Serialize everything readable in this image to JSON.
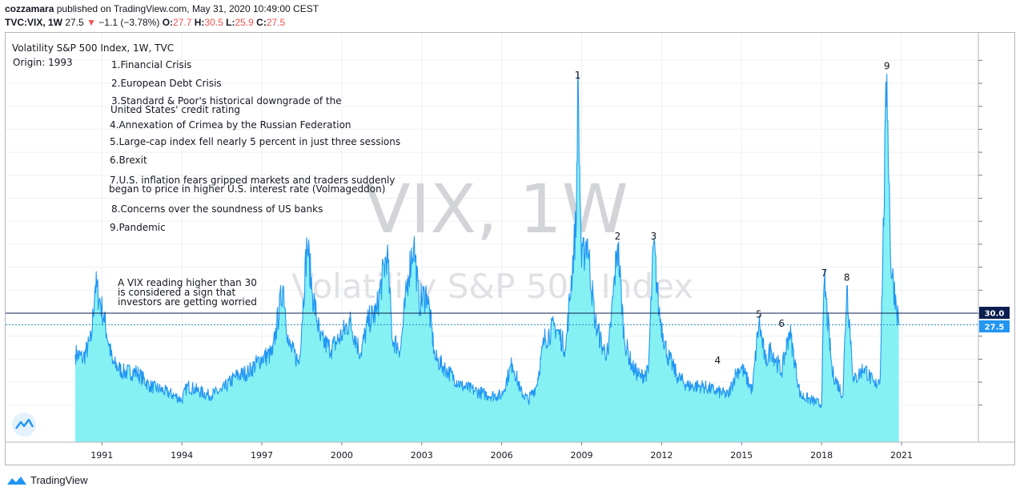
{
  "header": {
    "author": "cozzamara",
    "published_text": "published on TradingView.com, May 31, 2020 10:49:00 CEST",
    "symbol": "TVC:VIX, 1W",
    "last": "27.5",
    "change": "−1.1 (−3.78%)",
    "o_label": "O:",
    "o": "27.7",
    "h_label": "H:",
    "h": "30.5",
    "l_label": "L:",
    "l": "25.9",
    "c_label": "C:",
    "c": "27.5"
  },
  "legend": {
    "title": "Volatility S&P 500 Index, 1W, TVC",
    "origin": "Origin: 1993"
  },
  "watermark": {
    "big": "VIX, 1W",
    "small": "Volatility S&P 500 Index"
  },
  "events": [
    {
      "lines": [
        "1.Financial Crisis"
      ]
    },
    {
      "lines": [
        "2.European Debt Crisis"
      ]
    },
    {
      "lines": [
        "3.Standard & Poor's historical downgrade of the",
        "United States' credit rating"
      ]
    },
    {
      "lines": [
        "4.Annexation of Crimea by the Russian Federation"
      ]
    },
    {
      "lines": [
        "5.Large-cap index fell nearly 5 percent in just three sessions"
      ]
    },
    {
      "lines": [
        "6.Brexit"
      ]
    },
    {
      "lines": [
        "7.U.S. inflation fears gripped markets and traders suddenly",
        "began to price in higher U.S. interest rate (Volmageddon)"
      ]
    },
    {
      "lines": [
        "8.Concerns over the soundness of US banks"
      ]
    },
    {
      "lines": [
        "9.Pandemic"
      ]
    }
  ],
  "note": {
    "lines": [
      "A VIX reading higher than 30",
      "is considered a sign that",
      "investors are getting worried"
    ]
  },
  "price_labels": {
    "threshold": "30.0",
    "last": "27.5"
  },
  "footer": {
    "brand": "TradingView"
  },
  "colors": {
    "line": "#2196f3",
    "area": "#7ff0f2",
    "threshold": "#0b1e4f",
    "last_line": "#1e88c8",
    "red": "#ef5350",
    "grid": "#eef0f3"
  },
  "chart_data": {
    "type": "area",
    "title": "Volatility S&P 500 Index, 1W, TVC",
    "x_ticks": [
      "1991",
      "1994",
      "1997",
      "2000",
      "2003",
      "2006",
      "2009",
      "2012",
      "2015",
      "2018",
      "2021"
    ],
    "ylim": [
      9,
      90
    ],
    "horizontal_lines": [
      {
        "value": 30.0,
        "label": "30.0"
      },
      {
        "value": 27.5,
        "label": "27.5"
      }
    ],
    "series": [
      {
        "x": [
          1990.0,
          1990.3,
          1990.6,
          1990.75,
          1990.9,
          1991.1,
          1991.4,
          1991.8,
          1992.3,
          1992.8,
          1993.3,
          1993.7,
          1994.0,
          1994.2,
          1994.6,
          1995.0,
          1995.5,
          1996.0,
          1996.5,
          1997.0,
          1997.4,
          1997.8,
          1998.0,
          1998.4,
          1998.7,
          1998.9,
          1999.2,
          1999.6,
          2000.0,
          2000.3,
          2000.7,
          2001.0,
          2001.3,
          2001.7,
          2001.9,
          2002.2,
          2002.5,
          2002.7,
          2002.9,
          2003.2,
          2003.5,
          2004.0,
          2004.5,
          2005.0,
          2005.5,
          2006.0,
          2006.4,
          2006.7,
          2007.0,
          2007.3,
          2007.6,
          2008.0,
          2008.4,
          2008.8,
          2008.85,
          2009.0,
          2009.2,
          2009.5,
          2009.8,
          2010.0,
          2010.35,
          2010.6,
          2010.9,
          2011.2,
          2011.5,
          2011.7,
          2011.9,
          2012.2,
          2012.6,
          2013.0,
          2013.5,
          2014.0,
          2014.5,
          2014.8,
          2015.0,
          2015.4,
          2015.65,
          2015.9,
          2016.1,
          2016.5,
          2016.8,
          2017.2,
          2017.6,
          2018.0,
          2018.1,
          2018.4,
          2018.8,
          2018.95,
          2019.2,
          2019.6,
          2020.0,
          2020.2,
          2020.45,
          2020.6,
          2020.8,
          2020.9
        ],
        "y": [
          21,
          20,
          24,
          36,
          33,
          28,
          19,
          17,
          17,
          14,
          13,
          12,
          11,
          14,
          13,
          12,
          13,
          16,
          17,
          20,
          21,
          36,
          23,
          19,
          45,
          34,
          24,
          22,
          25,
          28,
          21,
          28,
          30,
          43,
          24,
          22,
          38,
          45,
          32,
          34,
          20,
          17,
          14,
          13,
          12,
          12,
          19,
          13,
          11,
          14,
          24,
          27,
          22,
          50,
          80,
          40,
          46,
          28,
          22,
          21,
          45,
          24,
          18,
          16,
          17,
          45,
          30,
          21,
          16,
          14,
          14,
          13,
          12,
          17,
          18,
          13,
          28,
          19,
          22,
          17,
          26,
          12,
          11,
          10,
          37,
          17,
          12,
          36,
          15,
          18,
          14,
          16,
          82,
          40,
          32,
          27.5
        ]
      }
    ],
    "event_labels": [
      {
        "label": "1",
        "x": 2008.85,
        "y": 80
      },
      {
        "label": "2",
        "x": 2010.35,
        "y": 45
      },
      {
        "label": "3",
        "x": 2011.7,
        "y": 45
      },
      {
        "label": "4",
        "x": 2014.1,
        "y": 18
      },
      {
        "label": "5",
        "x": 2015.65,
        "y": 28
      },
      {
        "label": "6",
        "x": 2016.5,
        "y": 26
      },
      {
        "label": "7",
        "x": 2018.1,
        "y": 37
      },
      {
        "label": "8",
        "x": 2018.95,
        "y": 36
      },
      {
        "label": "9",
        "x": 2020.45,
        "y": 82
      }
    ]
  }
}
